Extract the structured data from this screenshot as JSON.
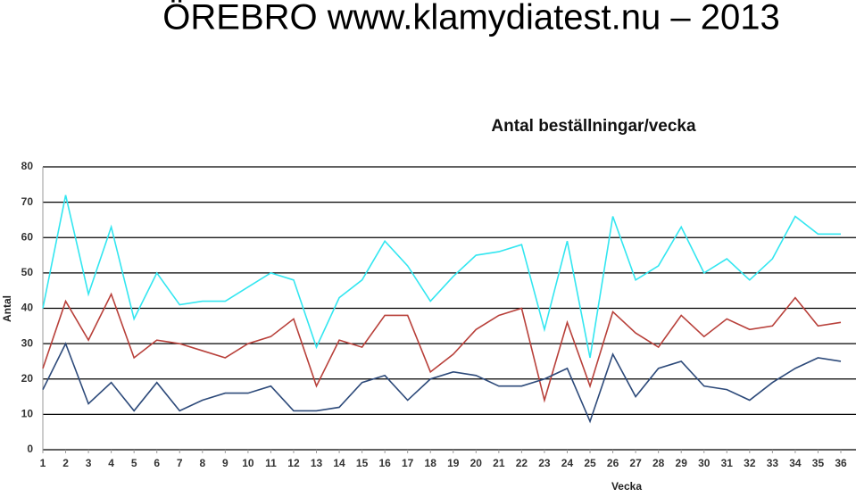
{
  "header": {
    "title": "ÖREBRO www.klamydiatest.nu – 2013"
  },
  "chart_data": {
    "type": "line",
    "title": "Antal beställningar/vecka",
    "x_label": "Vecka",
    "y_label": "Antal",
    "categories": [
      1,
      2,
      3,
      4,
      5,
      6,
      7,
      8,
      9,
      10,
      11,
      12,
      13,
      14,
      15,
      16,
      17,
      18,
      19,
      20,
      21,
      22,
      23,
      24,
      25,
      26,
      27,
      28,
      29,
      30,
      31,
      32,
      33,
      34,
      35,
      36
    ],
    "series": [
      {
        "color": "#33e6f0",
        "values": [
          40,
          72,
          44,
          63,
          37,
          50,
          41,
          42,
          42,
          46,
          50,
          48,
          29,
          43,
          48,
          59,
          52,
          42,
          49,
          55,
          56,
          58,
          34,
          59,
          26,
          66,
          48,
          52,
          63,
          50,
          54,
          48,
          54,
          66,
          61,
          61
        ]
      },
      {
        "color": "#b8403a",
        "values": [
          23,
          42,
          31,
          44,
          26,
          31,
          30,
          28,
          26,
          30,
          32,
          37,
          18,
          31,
          29,
          38,
          38,
          22,
          27,
          34,
          38,
          40,
          14,
          36,
          18,
          39,
          33,
          29,
          38,
          32,
          37,
          34,
          35,
          43,
          35,
          36
        ]
      },
      {
        "color": "#2d4a7a",
        "values": [
          17,
          30,
          13,
          19,
          11,
          19,
          11,
          14,
          16,
          16,
          18,
          11,
          11,
          12,
          19,
          21,
          14,
          20,
          22,
          21,
          18,
          18,
          20,
          23,
          8,
          27,
          15,
          23,
          25,
          18,
          17,
          14,
          19,
          23,
          26,
          25
        ]
      }
    ],
    "ylim": [
      0,
      80
    ],
    "yticks": [
      0,
      10,
      20,
      30,
      40,
      50,
      60,
      70,
      80
    ],
    "grid": true
  }
}
